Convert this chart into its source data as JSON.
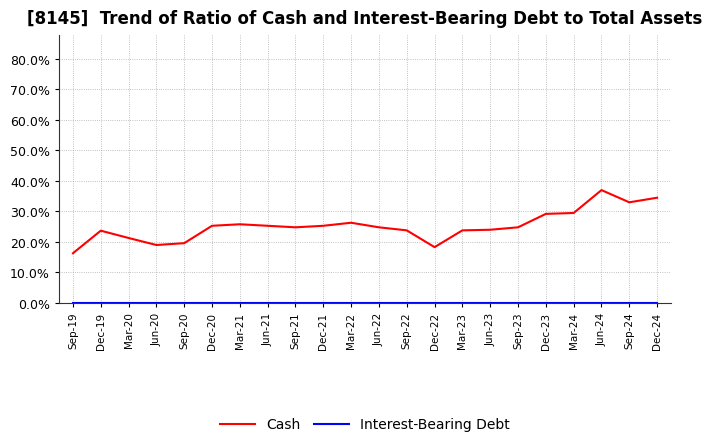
{
  "title": "[8145]  Trend of Ratio of Cash and Interest-Bearing Debt to Total Assets",
  "x_labels": [
    "Sep-19",
    "Dec-19",
    "Mar-20",
    "Jun-20",
    "Sep-20",
    "Dec-20",
    "Mar-21",
    "Jun-21",
    "Sep-21",
    "Dec-21",
    "Mar-22",
    "Jun-22",
    "Sep-22",
    "Dec-22",
    "Mar-23",
    "Jun-23",
    "Sep-23",
    "Dec-23",
    "Mar-24",
    "Jun-24",
    "Sep-24",
    "Dec-24"
  ],
  "cash_values": [
    0.163,
    0.237,
    0.213,
    0.19,
    0.196,
    0.253,
    0.258,
    0.253,
    0.248,
    0.253,
    0.263,
    0.248,
    0.238,
    0.183,
    0.238,
    0.24,
    0.248,
    0.292,
    0.295,
    0.37,
    0.33,
    0.345
  ],
  "debt_values": [
    0.0,
    0.0,
    0.0,
    0.0,
    0.0,
    0.0,
    0.0,
    0.0,
    0.0,
    0.0,
    0.0,
    0.0,
    0.0,
    0.0,
    0.0,
    0.0,
    0.0,
    0.0,
    0.0,
    0.0,
    0.0,
    0.0
  ],
  "cash_color": "#ff0000",
  "debt_color": "#0000ff",
  "line_width": 1.5,
  "background_color": "#ffffff",
  "grid_color": "#999999",
  "title_fontsize": 12,
  "legend_labels": [
    "Cash",
    "Interest-Bearing Debt"
  ],
  "ytick_vals": [
    0.0,
    0.1,
    0.2,
    0.3,
    0.4,
    0.5,
    0.6,
    0.7,
    0.8
  ],
  "ytick_labels": [
    "0.0%",
    "10.0%",
    "20.0%",
    "30.0%",
    "40.0%",
    "50.0%",
    "60.0%",
    "70.0%",
    "80.0%"
  ],
  "ylim": [
    0.0,
    0.88
  ]
}
